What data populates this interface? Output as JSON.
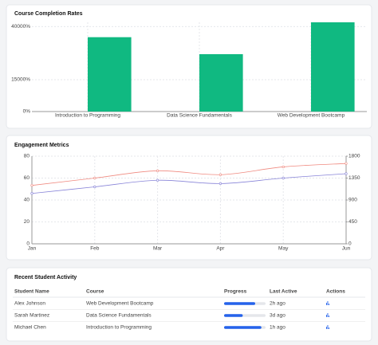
{
  "chart_data": [
    {
      "type": "bar",
      "title": "Course Completion Rates",
      "categories": [
        "Introduction to Programming",
        "Data Science Fundamentals",
        "Web Development Bootcamp"
      ],
      "values": [
        35000,
        27000,
        42000
      ],
      "color": "#10b981",
      "ylim": [
        0,
        42000
      ],
      "yticks": [
        {
          "value": 0,
          "label": "0%"
        },
        {
          "value": 15000,
          "label": "15000%"
        },
        {
          "value": 40000,
          "label": "40000%"
        }
      ],
      "grid": true
    },
    {
      "type": "line",
      "title": "Engagement Metrics",
      "categories": [
        "Jan",
        "Feb",
        "Mar",
        "Apr",
        "May",
        "Jun"
      ],
      "series": [
        {
          "color": "#8884d8",
          "values": [
            46,
            52,
            58,
            55,
            60,
            64
          ]
        },
        {
          "color": "#f08a80",
          "values": [
            1200,
            1350,
            1500,
            1420,
            1580,
            1650
          ],
          "axis": "y2"
        }
      ],
      "ylim": [
        0,
        80
      ],
      "yticks": [
        0,
        20,
        40,
        60,
        80
      ],
      "y2lim": [
        0,
        1800
      ],
      "y2ticks": [
        0,
        450,
        900,
        1350,
        1800
      ],
      "grid": true
    }
  ],
  "table": {
    "title": "Recent Student Activity",
    "columns": [
      "Student Name",
      "Course",
      "Progress",
      "Last Active",
      "Actions"
    ],
    "rows": [
      [
        "Alex Johnson",
        "Web Development Bootcamp",
        75,
        "2h ago"
      ],
      [
        "Sarah Martinez",
        "Data Science Fundamentals",
        45,
        "3d ago"
      ],
      [
        "Michael Chen",
        "Introduction to Programming",
        90,
        "1h ago"
      ]
    ]
  }
}
